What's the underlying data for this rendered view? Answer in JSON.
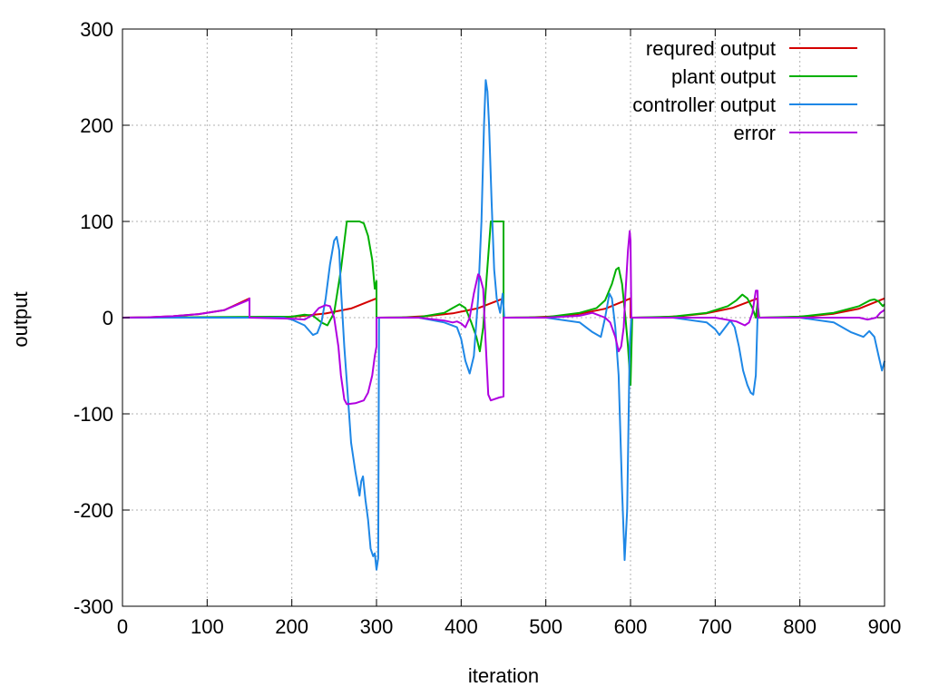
{
  "chart_data": {
    "type": "line",
    "title": "",
    "xlabel": "iteration",
    "ylabel": "output",
    "xlim": [
      0,
      900
    ],
    "ylim": [
      -300,
      300
    ],
    "xticks": [
      0,
      100,
      200,
      300,
      400,
      500,
      600,
      700,
      800,
      900
    ],
    "yticks": [
      300,
      200,
      100,
      0,
      -100,
      -200,
      -300
    ],
    "grid": true,
    "legend_position": "top-right",
    "series": [
      {
        "name": "requred output",
        "color": "#d40000",
        "points": [
          [
            0,
            0
          ],
          [
            30,
            0.4
          ],
          [
            60,
            1.5
          ],
          [
            90,
            3.7
          ],
          [
            120,
            7.7
          ],
          [
            150,
            20
          ],
          [
            150,
            0
          ],
          [
            180,
            0.2
          ],
          [
            210,
            1.5
          ],
          [
            240,
            4.3
          ],
          [
            270,
            9.5
          ],
          [
            300,
            20
          ],
          [
            300,
            0
          ],
          [
            330,
            0.3
          ],
          [
            360,
            1.6
          ],
          [
            390,
            4.4
          ],
          [
            420,
            9.8
          ],
          [
            450,
            20
          ],
          [
            450,
            0
          ],
          [
            480,
            0.2
          ],
          [
            510,
            1.3
          ],
          [
            540,
            4
          ],
          [
            570,
            9.2
          ],
          [
            600,
            20
          ],
          [
            600,
            0
          ],
          [
            630,
            0.3
          ],
          [
            660,
            1.6
          ],
          [
            690,
            4.5
          ],
          [
            720,
            10
          ],
          [
            750,
            20
          ],
          [
            750,
            0
          ],
          [
            780,
            0.2
          ],
          [
            810,
            1.4
          ],
          [
            840,
            4.1
          ],
          [
            870,
            9.3
          ],
          [
            900,
            20
          ]
        ]
      },
      {
        "name": "plant output",
        "color": "#00b000",
        "points": [
          [
            0,
            0
          ],
          [
            200,
            1
          ],
          [
            215,
            3
          ],
          [
            225,
            2
          ],
          [
            235,
            -5
          ],
          [
            242,
            -8
          ],
          [
            250,
            5
          ],
          [
            258,
            50
          ],
          [
            265,
            100
          ],
          [
            270,
            100
          ],
          [
            280,
            100
          ],
          [
            285,
            98
          ],
          [
            290,
            85
          ],
          [
            295,
            60
          ],
          [
            298,
            30
          ],
          [
            300,
            38
          ],
          [
            300,
            0
          ],
          [
            350,
            0.5
          ],
          [
            380,
            5
          ],
          [
            390,
            10
          ],
          [
            398,
            14
          ],
          [
            405,
            10
          ],
          [
            412,
            -5
          ],
          [
            418,
            -20
          ],
          [
            422,
            -35
          ],
          [
            426,
            -10
          ],
          [
            430,
            40
          ],
          [
            435,
            100
          ],
          [
            440,
            100
          ],
          [
            450,
            100
          ],
          [
            450,
            0
          ],
          [
            500,
            0.5
          ],
          [
            540,
            5
          ],
          [
            560,
            10
          ],
          [
            570,
            18
          ],
          [
            578,
            35
          ],
          [
            583,
            50
          ],
          [
            586,
            52
          ],
          [
            590,
            35
          ],
          [
            594,
            0
          ],
          [
            597,
            -30
          ],
          [
            600,
            -70
          ],
          [
            602,
            0
          ],
          [
            650,
            1
          ],
          [
            690,
            5
          ],
          [
            715,
            12
          ],
          [
            725,
            18
          ],
          [
            732,
            24
          ],
          [
            738,
            20
          ],
          [
            744,
            10
          ],
          [
            748,
            0
          ],
          [
            750,
            15
          ],
          [
            752,
            0
          ],
          [
            800,
            1
          ],
          [
            840,
            5
          ],
          [
            870,
            12
          ],
          [
            883,
            18
          ],
          [
            888,
            19
          ],
          [
            893,
            17
          ],
          [
            898,
            12
          ],
          [
            900,
            14
          ]
        ]
      },
      {
        "name": "controller output",
        "color": "#1e87e6",
        "points": [
          [
            0,
            0
          ],
          [
            150,
            0
          ],
          [
            150,
            0
          ],
          [
            190,
            0
          ],
          [
            200,
            -2
          ],
          [
            215,
            -8
          ],
          [
            225,
            -18
          ],
          [
            230,
            -16
          ],
          [
            235,
            -5
          ],
          [
            240,
            20
          ],
          [
            245,
            55
          ],
          [
            250,
            80
          ],
          [
            253,
            84
          ],
          [
            256,
            70
          ],
          [
            258,
            30
          ],
          [
            262,
            -30
          ],
          [
            266,
            -80
          ],
          [
            270,
            -130
          ],
          [
            275,
            -160
          ],
          [
            280,
            -185
          ],
          [
            282,
            -170
          ],
          [
            284,
            -165
          ],
          [
            287,
            -190
          ],
          [
            290,
            -210
          ],
          [
            293,
            -240
          ],
          [
            296,
            -248
          ],
          [
            298,
            -245
          ],
          [
            300,
            -262
          ],
          [
            302,
            -250
          ],
          [
            303,
            0
          ],
          [
            350,
            0
          ],
          [
            380,
            -5
          ],
          [
            395,
            -10
          ],
          [
            400,
            -22
          ],
          [
            405,
            -45
          ],
          [
            410,
            -58
          ],
          [
            415,
            -40
          ],
          [
            420,
            20
          ],
          [
            424,
            100
          ],
          [
            427,
            200
          ],
          [
            429,
            247
          ],
          [
            431,
            235
          ],
          [
            433,
            200
          ],
          [
            436,
            120
          ],
          [
            439,
            50
          ],
          [
            442,
            20
          ],
          [
            446,
            5
          ],
          [
            449,
            25
          ],
          [
            451,
            0
          ],
          [
            500,
            0
          ],
          [
            540,
            -5
          ],
          [
            555,
            -15
          ],
          [
            565,
            -20
          ],
          [
            570,
            0
          ],
          [
            575,
            25
          ],
          [
            578,
            20
          ],
          [
            582,
            -10
          ],
          [
            586,
            -60
          ],
          [
            590,
            -180
          ],
          [
            593,
            -252
          ],
          [
            596,
            -200
          ],
          [
            599,
            -30
          ],
          [
            601,
            0
          ],
          [
            650,
            0
          ],
          [
            690,
            -5
          ],
          [
            700,
            -12
          ],
          [
            705,
            -18
          ],
          [
            712,
            -10
          ],
          [
            718,
            -3
          ],
          [
            723,
            -10
          ],
          [
            728,
            -30
          ],
          [
            733,
            -55
          ],
          [
            738,
            -70
          ],
          [
            742,
            -78
          ],
          [
            745,
            -80
          ],
          [
            748,
            -60
          ],
          [
            750,
            0
          ],
          [
            752,
            0
          ],
          [
            800,
            0
          ],
          [
            840,
            -5
          ],
          [
            860,
            -15
          ],
          [
            875,
            -20
          ],
          [
            882,
            -14
          ],
          [
            888,
            -20
          ],
          [
            893,
            -40
          ],
          [
            897,
            -55
          ],
          [
            900,
            -45
          ]
        ]
      },
      {
        "name": "error",
        "color": "#b000e0",
        "points": [
          [
            0,
            0
          ],
          [
            30,
            0.4
          ],
          [
            60,
            1.5
          ],
          [
            90,
            3.7
          ],
          [
            120,
            7.7
          ],
          [
            148,
            18
          ],
          [
            150,
            20
          ],
          [
            150,
            0
          ],
          [
            200,
            -1
          ],
          [
            215,
            -2
          ],
          [
            225,
            3
          ],
          [
            232,
            10
          ],
          [
            240,
            13
          ],
          [
            245,
            12
          ],
          [
            250,
            0
          ],
          [
            255,
            -30
          ],
          [
            258,
            -60
          ],
          [
            262,
            -85
          ],
          [
            265,
            -90
          ],
          [
            275,
            -89
          ],
          [
            285,
            -86
          ],
          [
            290,
            -78
          ],
          [
            295,
            -60
          ],
          [
            298,
            -40
          ],
          [
            300,
            -30
          ],
          [
            300,
            0
          ],
          [
            350,
            0
          ],
          [
            380,
            -3
          ],
          [
            390,
            -5
          ],
          [
            395,
            -4
          ],
          [
            400,
            -6
          ],
          [
            405,
            -10
          ],
          [
            410,
            0
          ],
          [
            415,
            25
          ],
          [
            420,
            45
          ],
          [
            422,
            43
          ],
          [
            426,
            30
          ],
          [
            428,
            -10
          ],
          [
            432,
            -80
          ],
          [
            435,
            -86
          ],
          [
            445,
            -83
          ],
          [
            450,
            -82
          ],
          [
            450,
            0
          ],
          [
            500,
            0
          ],
          [
            540,
            2
          ],
          [
            555,
            5
          ],
          [
            570,
            0
          ],
          [
            576,
            -5
          ],
          [
            582,
            -20
          ],
          [
            586,
            -35
          ],
          [
            589,
            -30
          ],
          [
            592,
            -10
          ],
          [
            594,
            25
          ],
          [
            597,
            70
          ],
          [
            599,
            90
          ],
          [
            600,
            80
          ],
          [
            601,
            0
          ],
          [
            650,
            0
          ],
          [
            700,
            0
          ],
          [
            725,
            -4
          ],
          [
            735,
            -8
          ],
          [
            740,
            -5
          ],
          [
            744,
            5
          ],
          [
            748,
            28
          ],
          [
            750,
            28
          ],
          [
            751,
            0
          ],
          [
            800,
            0
          ],
          [
            840,
            0
          ],
          [
            870,
            0
          ],
          [
            880,
            -2
          ],
          [
            890,
            0
          ],
          [
            895,
            5
          ],
          [
            900,
            8
          ]
        ]
      }
    ]
  }
}
